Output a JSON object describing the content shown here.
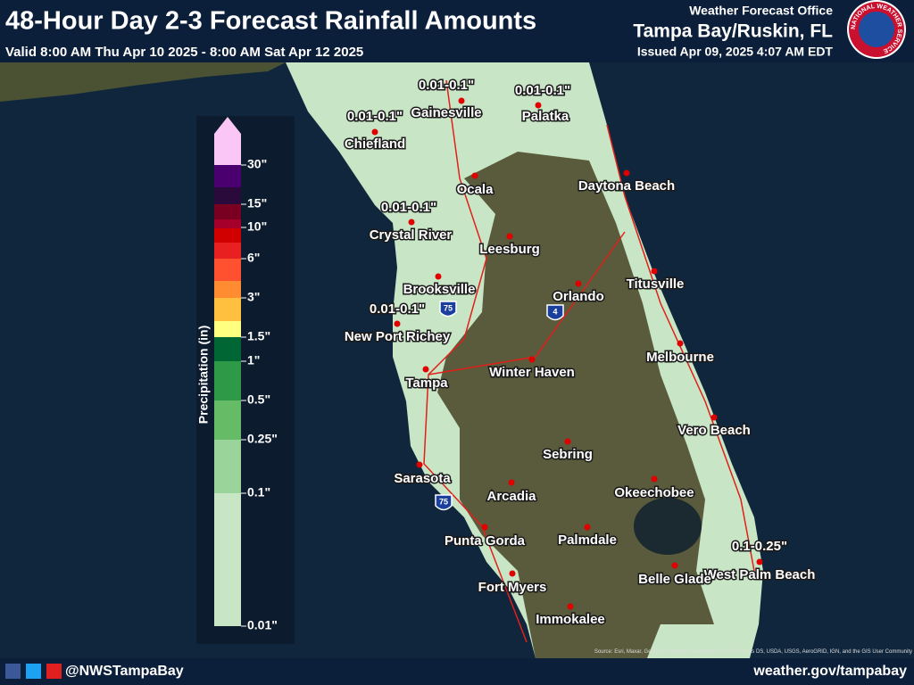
{
  "header": {
    "title": "48-Hour Day 2-3 Forecast Rainfall Amounts",
    "valid": "Valid 8:00 AM Thu Apr 10 2025 - 8:00 AM Sat Apr 12 2025",
    "office_label": "Weather Forecast Office",
    "office": "Tampa Bay/Ruskin, FL",
    "issued": "Issued Apr 09, 2025 4:07 AM EDT",
    "logo_text": "NATIONAL WEATHER SERVICE"
  },
  "legend": {
    "title": "Precipitation (in)",
    "labels": [
      "30\"",
      "15\"",
      "10\"",
      "6\"",
      "3\"",
      "1.5\"",
      "1\"",
      "0.5\"",
      "0.25\"",
      "0.1\"",
      "0.01\""
    ]
  },
  "cities": [
    "Gainesville",
    "Palatka",
    "Chiefland",
    "Ocala",
    "Daytona Beach",
    "Crystal River",
    "Leesburg",
    "Titusville",
    "Brooksville",
    "Orlando",
    "New Port Richey",
    "Melbourne",
    "Winter Haven",
    "Tampa",
    "Vero Beach",
    "Sebring",
    "Sarasota",
    "Arcadia",
    "Okeechobee",
    "Punta Gorda",
    "Palmdale",
    "West Palm Beach",
    "Belle Glade",
    "Fort Myers",
    "Immokalee"
  ],
  "amounts": [
    "0.01-0.1\"",
    "0.01-0.1\"",
    "0.01-0.1\"",
    "0.01-0.1\"",
    "0.01-0.1\"",
    "0.1-0.25\""
  ],
  "shields": [
    "75",
    "4",
    "75"
  ],
  "footer": {
    "social": "@NWSTampaBay",
    "website": "weather.gov/tampabay",
    "attribution": "Source: Esri, Maxar, GeoEye, Earthstar Geographics, CNES/Airbus DS, USDA, USGS, AeroGRID, IGN, and the GIS User Community"
  }
}
